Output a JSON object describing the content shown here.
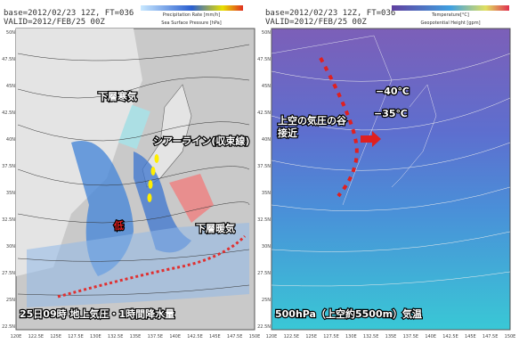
{
  "left_panel": {
    "header": [
      "base=2012/02/23 12Z, FT=036",
      "VALID=2012/FEB/25 00Z"
    ],
    "legend": [
      "Precipitation Rate [mm/h]",
      "Sea Surface Pressure [hPa]"
    ],
    "annotations": [
      "下層寒気",
      "シアーライン(収束線)",
      "低",
      "下層暖気"
    ],
    "caption": "25日09時 地上気圧・1時間降水量"
  },
  "right_panel": {
    "header": [
      "base=2012/02/23 12Z, FT=036",
      "VALID=2012/FEB/25 00Z"
    ],
    "legend": [
      "Temperature[°C]",
      "Geopotential Height [gpm]"
    ],
    "annotations": [
      "−40℃",
      "−35℃",
      "上空の気圧の谷",
      "接近"
    ],
    "caption": "500hPa（上空約5500m）気温"
  },
  "lat_labels": [
    "50N",
    "47.5N",
    "45N",
    "42.5N",
    "40N",
    "37.5N",
    "35N",
    "32.5N",
    "30N",
    "27.5N",
    "25N",
    "22.5N"
  ],
  "lon_labels": [
    "120E",
    "122.5E",
    "125E",
    "127.5E",
    "130E",
    "132.5E",
    "135E",
    "137.5E",
    "140E",
    "142.5E",
    "145E",
    "147.5E",
    "150E"
  ]
}
